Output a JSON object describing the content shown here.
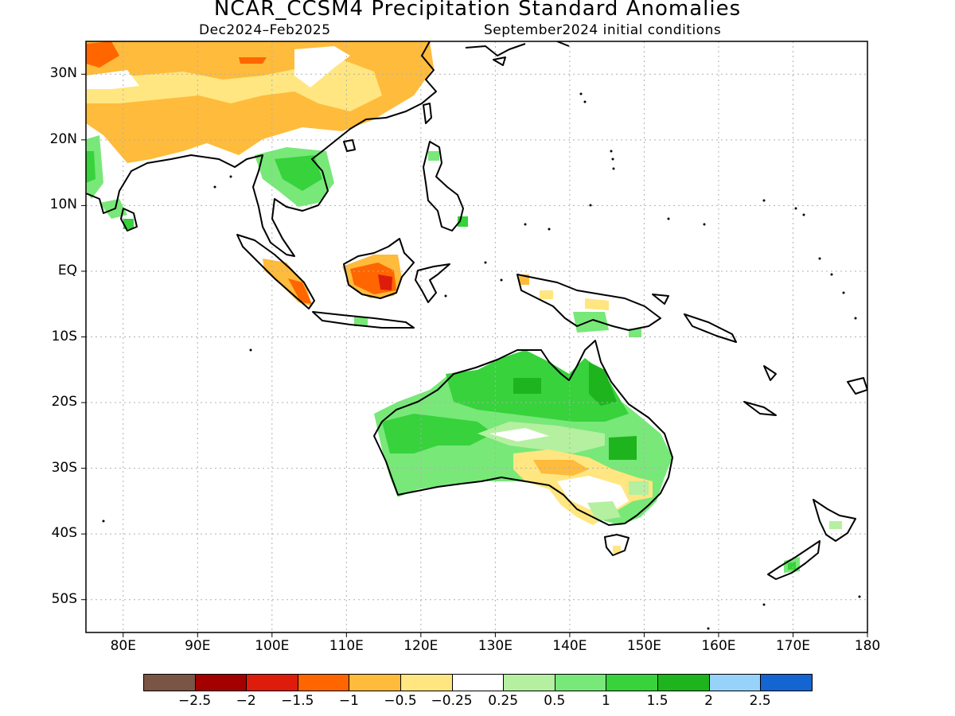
{
  "title": "NCAR_CCSM4 Precipitation Standard Anomalies",
  "period": "Dec2024–Feb2025",
  "init": "September2024 initial conditions",
  "lat_labels": [
    "30N",
    "20N",
    "10N",
    "EQ",
    "10S",
    "20S",
    "30S",
    "40S",
    "50S"
  ],
  "lon_labels": [
    "80E",
    "90E",
    "100E",
    "110E",
    "120E",
    "130E",
    "140E",
    "150E",
    "160E",
    "170E",
    "180"
  ],
  "colorbar": {
    "colors": [
      "#7a5444",
      "#a50000",
      "#dd1c0c",
      "#ff6600",
      "#ffbb3c",
      "#ffe680",
      "#ffffff",
      "#b4f0a0",
      "#78e878",
      "#37d23c",
      "#1eb41e",
      "#96d2fa",
      "#1464d2"
    ],
    "labels": [
      "−2.5",
      "−2",
      "−1.5",
      "−1",
      "−0.5",
      "−0.25",
      "0.25",
      "0.5",
      "1",
      "1.5",
      "2",
      "2.5"
    ]
  }
}
